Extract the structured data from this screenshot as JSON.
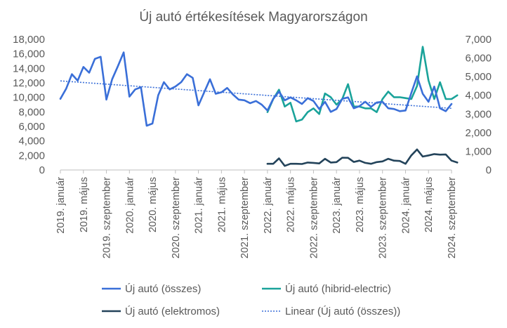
{
  "chart_data": {
    "type": "line",
    "title": "Új autó értékesítések Magyarországon",
    "xlabel": "",
    "ylabel": "",
    "y_left": {
      "min": 0,
      "max": 18000,
      "ticks": [
        "0",
        "2,000",
        "4,000",
        "6,000",
        "8,000",
        "10,000",
        "12,000",
        "14,000",
        "16,000",
        "18,000"
      ]
    },
    "y_right": {
      "min": 0,
      "max": 7000,
      "ticks": [
        "0",
        "1,000",
        "2,000",
        "3,000",
        "4,000",
        "5,000",
        "6,000",
        "7,000"
      ]
    },
    "x_tick_labels": [
      "2019. január",
      "2019. május",
      "2019. szeptember",
      "2020. január",
      "2020. május",
      "2020. szeptember",
      "2021. január",
      "2021. május",
      "2021. szeptember",
      "2022. január",
      "2022. május",
      "2022. szeptember",
      "2023. január",
      "2023. május",
      "2023. szeptember",
      "2024. január",
      "2024. május",
      "2024. szeptember"
    ],
    "months": 69,
    "grid": false,
    "legend_position": "bottom",
    "series": [
      {
        "name": "Új autó (összes)",
        "axis": "left",
        "color": "#3a6fd8",
        "start_month": 0,
        "values": [
          9800,
          11200,
          13200,
          12300,
          14200,
          13400,
          15300,
          15600,
          9700,
          12500,
          14300,
          16200,
          10100,
          11100,
          11400,
          6100,
          6400,
          10300,
          12100,
          11100,
          11500,
          12100,
          13200,
          12700,
          8900,
          10700,
          12500,
          10500,
          10700,
          11300,
          10400,
          9700,
          9600,
          9200,
          9500,
          9000,
          8200,
          9800,
          10800,
          9600,
          10000,
          9600,
          9100,
          9900,
          9500,
          8400,
          9400,
          8000,
          8400,
          9800,
          10000,
          8500,
          8800,
          9400,
          8700,
          9300,
          9400,
          8500,
          8400,
          8100,
          8200,
          10600,
          12900,
          10500,
          9400,
          11500,
          8500,
          8100,
          9100
        ]
      },
      {
        "name": "Új autó (hibrid-electric)",
        "axis": "right",
        "color": "#1aa39a",
        "start_month": 36,
        "values": [
          3100,
          3800,
          4300,
          3400,
          3600,
          2600,
          2700,
          3100,
          3300,
          3000,
          4100,
          3900,
          3500,
          3800,
          4600,
          3400,
          3400,
          3300,
          3300,
          3100,
          3800,
          4200,
          3900,
          3900,
          3850,
          3800,
          4500,
          6600,
          4800,
          3800,
          4700,
          3800,
          3800,
          4000
        ]
      },
      {
        "name": "Új autó (elektromos)",
        "axis": "right",
        "color": "#23435a",
        "start_month": 36,
        "values": [
          330,
          330,
          620,
          220,
          330,
          330,
          320,
          400,
          380,
          350,
          600,
          400,
          420,
          660,
          650,
          430,
          500,
          380,
          330,
          420,
          460,
          600,
          500,
          480,
          330,
          780,
          1100,
          720,
          780,
          850,
          820,
          830,
          500,
          400
        ]
      },
      {
        "name": "Linear (Új autó (összes))",
        "axis": "left",
        "color": "#3a6fd8",
        "dashed": true,
        "trend_of": 0
      }
    ]
  }
}
